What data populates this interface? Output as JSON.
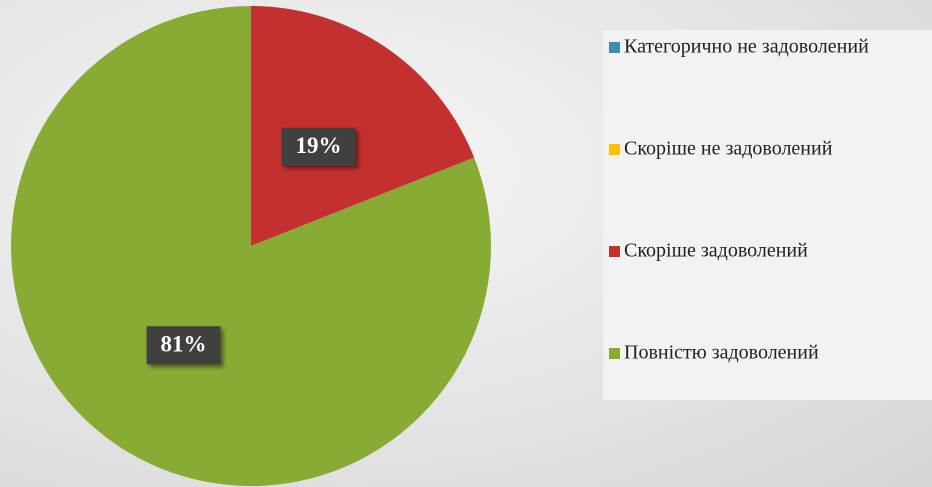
{
  "chart_data": {
    "type": "pie",
    "categories": [
      "Категорично не задоволений",
      "Скоріше не задоволений",
      "Скоріше задоволений",
      "Повністю задоволений"
    ],
    "values": [
      0,
      0,
      19,
      81
    ],
    "value_labels": [
      null,
      null,
      "19%",
      "81%"
    ],
    "colors": [
      "#3b8fb5",
      "#ffc000",
      "#c3302f",
      "#87ab35"
    ],
    "legend": "right"
  }
}
